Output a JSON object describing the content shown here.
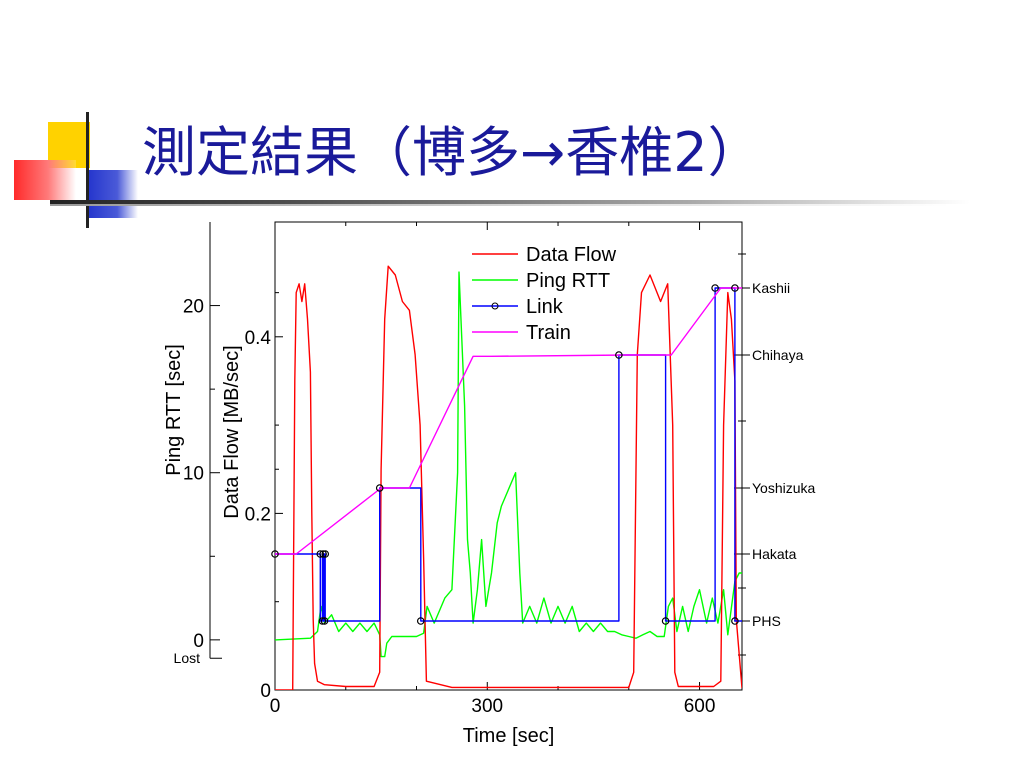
{
  "slide": {
    "title": "測定結果（博多→香椎2）"
  },
  "colors": {
    "title": "#1a1a9a",
    "data_flow": "#ff0000",
    "ping_rtt": "#00ff00",
    "link": "#0000ff",
    "train": "#ff00ff"
  },
  "chart_data": {
    "type": "line",
    "xlabel": "Time [sec]",
    "ylabel_left_outer": "Ping RTT [sec]",
    "ylabel_left_inner": "Data Flow [MB/sec]",
    "xlim": [
      0,
      660
    ],
    "x_ticks": [
      {
        "value": 0,
        "label": "0"
      },
      {
        "value": 300,
        "label": "300"
      },
      {
        "value": 600,
        "label": "600"
      }
    ],
    "ping_ylim": [
      -3,
      25
    ],
    "ping_ticks": [
      {
        "value": 0,
        "label": "0"
      },
      {
        "value": 10,
        "label": "10"
      },
      {
        "value": 20,
        "label": "20"
      }
    ],
    "ping_lost_label": "Lost",
    "flow_ylim": [
      0,
      0.53
    ],
    "flow_ticks": [
      {
        "value": 0,
        "label": "0"
      },
      {
        "value": 0.2,
        "label": "0.2"
      },
      {
        "value": 0.4,
        "label": "0.4"
      }
    ],
    "locations": [
      "PHS",
      "Hakata",
      "Yoshizuka",
      "Chihaya",
      "Kashii"
    ],
    "legend_position": "top-right",
    "series": [
      {
        "name": "Data Flow",
        "axis": "flow",
        "points": [
          [
            0,
            0.0
          ],
          [
            25,
            0.0
          ],
          [
            28,
            0.35
          ],
          [
            30,
            0.45
          ],
          [
            34,
            0.46
          ],
          [
            38,
            0.44
          ],
          [
            42,
            0.46
          ],
          [
            46,
            0.42
          ],
          [
            50,
            0.36
          ],
          [
            52,
            0.2
          ],
          [
            54,
            0.08
          ],
          [
            56,
            0.03
          ],
          [
            60,
            0.01
          ],
          [
            70,
            0.006
          ],
          [
            100,
            0.004
          ],
          [
            140,
            0.004
          ],
          [
            148,
            0.02
          ],
          [
            150,
            0.25
          ],
          [
            155,
            0.42
          ],
          [
            160,
            0.48
          ],
          [
            170,
            0.47
          ],
          [
            180,
            0.44
          ],
          [
            190,
            0.43
          ],
          [
            198,
            0.38
          ],
          [
            205,
            0.3
          ],
          [
            210,
            0.15
          ],
          [
            214,
            0.01
          ],
          [
            250,
            0.003
          ],
          [
            350,
            0.003
          ],
          [
            450,
            0.003
          ],
          [
            500,
            0.003
          ],
          [
            507,
            0.02
          ],
          [
            512,
            0.38
          ],
          [
            518,
            0.45
          ],
          [
            530,
            0.47
          ],
          [
            545,
            0.44
          ],
          [
            555,
            0.46
          ],
          [
            562,
            0.3
          ],
          [
            565,
            0.02
          ],
          [
            570,
            0.004
          ],
          [
            620,
            0.004
          ],
          [
            630,
            0.01
          ],
          [
            634,
            0.3
          ],
          [
            640,
            0.45
          ],
          [
            645,
            0.42
          ],
          [
            650,
            0.35
          ],
          [
            652,
            0.08
          ],
          [
            660,
            0.002
          ]
        ]
      },
      {
        "name": "Ping RTT",
        "axis": "ping",
        "points": [
          [
            0,
            0.0
          ],
          [
            50,
            0.1
          ],
          [
            60,
            0.5
          ],
          [
            65,
            2
          ],
          [
            70,
            1
          ],
          [
            80,
            1.5
          ],
          [
            90,
            0.5
          ],
          [
            100,
            1
          ],
          [
            110,
            0.5
          ],
          [
            120,
            1
          ],
          [
            130,
            0.5
          ],
          [
            140,
            1
          ],
          [
            148,
            0.3
          ],
          [
            150,
            -1
          ],
          [
            155,
            -1
          ],
          [
            158,
            -0.2
          ],
          [
            165,
            0.2
          ],
          [
            190,
            0.2
          ],
          [
            200,
            0.2
          ],
          [
            210,
            0.4
          ],
          [
            215,
            2
          ],
          [
            225,
            1
          ],
          [
            240,
            2.5
          ],
          [
            250,
            3
          ],
          [
            258,
            10
          ],
          [
            260,
            22
          ],
          [
            264,
            18
          ],
          [
            268,
            14
          ],
          [
            272,
            6
          ],
          [
            276,
            4
          ],
          [
            280,
            1
          ],
          [
            286,
            3
          ],
          [
            292,
            6
          ],
          [
            298,
            2
          ],
          [
            306,
            4
          ],
          [
            314,
            7
          ],
          [
            320,
            8
          ],
          [
            330,
            9
          ],
          [
            340,
            10
          ],
          [
            346,
            4
          ],
          [
            350,
            1
          ],
          [
            360,
            2
          ],
          [
            370,
            1
          ],
          [
            380,
            2.5
          ],
          [
            390,
            1
          ],
          [
            400,
            2
          ],
          [
            410,
            1
          ],
          [
            420,
            2
          ],
          [
            430,
            0.5
          ],
          [
            440,
            1
          ],
          [
            450,
            0.5
          ],
          [
            460,
            1
          ],
          [
            470,
            0.5
          ],
          [
            480,
            0.5
          ],
          [
            490,
            0.3
          ],
          [
            500,
            0.2
          ],
          [
            510,
            0.1
          ],
          [
            520,
            0.3
          ],
          [
            530,
            0.5
          ],
          [
            540,
            0.2
          ],
          [
            550,
            0.2
          ],
          [
            556,
            2
          ],
          [
            562,
            2.5
          ],
          [
            568,
            0.5
          ],
          [
            576,
            2
          ],
          [
            584,
            0.5
          ],
          [
            592,
            2
          ],
          [
            600,
            3
          ],
          [
            610,
            1
          ],
          [
            618,
            2.5
          ],
          [
            626,
            1
          ],
          [
            634,
            3
          ],
          [
            640,
            0.3
          ],
          [
            650,
            3.5
          ],
          [
            656,
            4
          ],
          [
            660,
            4
          ]
        ]
      },
      {
        "name": "Link",
        "axis": "location",
        "points": [
          [
            0,
            1
          ],
          [
            64,
            1
          ],
          [
            64,
            0
          ],
          [
            67,
            0
          ],
          [
            67,
            1
          ],
          [
            68,
            1
          ],
          [
            68,
            0
          ],
          [
            70,
            0
          ],
          [
            70,
            1
          ],
          [
            71,
            1
          ],
          [
            71,
            0
          ],
          [
            148,
            0
          ],
          [
            148,
            2
          ],
          [
            206,
            2
          ],
          [
            206,
            0
          ],
          [
            486,
            0
          ],
          [
            486,
            3
          ],
          [
            552,
            3
          ],
          [
            552,
            0
          ],
          [
            622,
            0
          ],
          [
            622,
            4
          ],
          [
            650,
            4
          ],
          [
            650,
            0
          ],
          [
            660,
            0
          ]
        ]
      },
      {
        "name": "Train",
        "axis": "location",
        "points": [
          [
            0,
            1
          ],
          [
            30,
            1
          ],
          [
            150,
            2
          ],
          [
            190,
            2
          ],
          [
            280,
            2.99
          ],
          [
            305,
            2.99
          ],
          [
            500,
            3
          ],
          [
            560,
            3
          ],
          [
            630,
            4
          ],
          [
            660,
            4
          ]
        ]
      }
    ],
    "link_markers": [
      [
        0,
        1
      ],
      [
        64,
        1
      ],
      [
        67,
        0
      ],
      [
        68,
        1
      ],
      [
        70,
        0
      ],
      [
        71,
        1
      ],
      [
        148,
        2
      ],
      [
        206,
        0
      ],
      [
        486,
        3
      ],
      [
        552,
        0
      ],
      [
        622,
        4
      ],
      [
        650,
        4
      ],
      [
        650,
        0
      ]
    ]
  }
}
